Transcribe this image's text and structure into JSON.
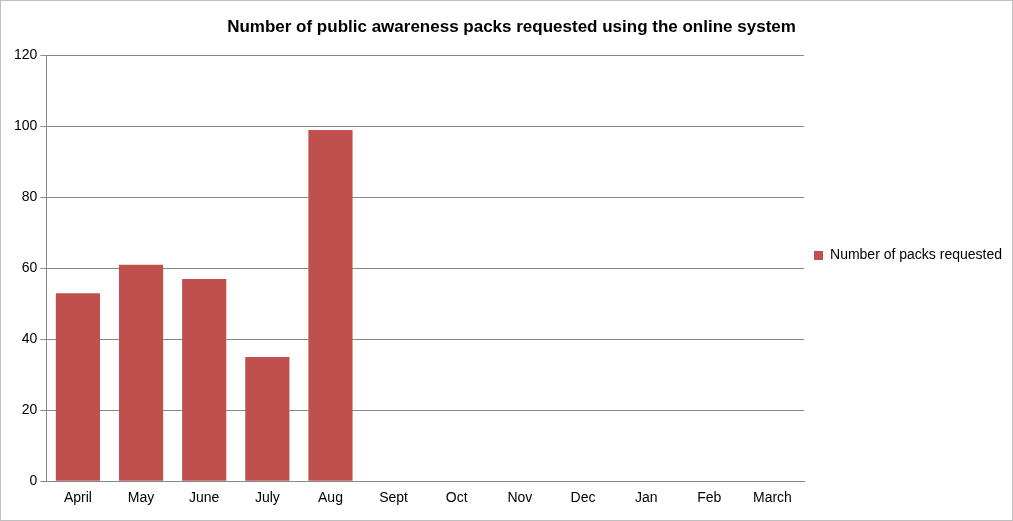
{
  "chart_data": {
    "type": "bar",
    "title": "Number of public awareness packs requested using the online system",
    "categories": [
      "April",
      "May",
      "June",
      "July",
      "Aug",
      "Sept",
      "Oct",
      "Nov",
      "Dec",
      "Jan",
      "Feb",
      "March"
    ],
    "series": [
      {
        "name": "Number of packs requested",
        "color": "#c0504d",
        "values": [
          53,
          61,
          57,
          35,
          99,
          null,
          null,
          null,
          null,
          null,
          null,
          null
        ]
      }
    ],
    "ylim": [
      0,
      120
    ],
    "yticks": [
      0,
      20,
      40,
      60,
      80,
      100,
      120
    ],
    "grid": "y",
    "legend": "right"
  }
}
